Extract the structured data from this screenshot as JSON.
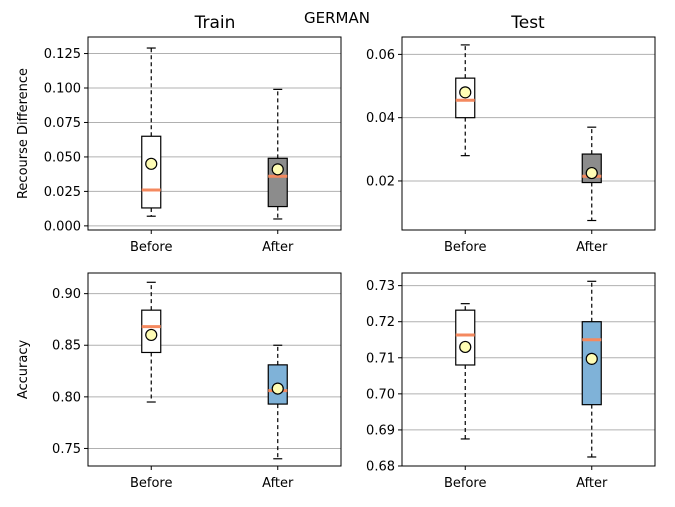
{
  "figure": {
    "suptitle": "GERMAN"
  },
  "chart_data": [
    {
      "type": "box",
      "title": "Train",
      "xlabel": "",
      "ylabel": "Recourse Difference",
      "categories": [
        "Before",
        "After"
      ],
      "ylim": [
        -0.003,
        0.137
      ],
      "yticks": [
        0.0,
        0.025,
        0.05,
        0.075,
        0.1,
        0.125
      ],
      "ytick_labels": [
        "0.000",
        "0.025",
        "0.050",
        "0.075",
        "0.100",
        "0.125"
      ],
      "grid": "y",
      "boxes": [
        {
          "category": "Before",
          "whisker_low": 0.007,
          "q1": 0.013,
          "median": 0.026,
          "q3": 0.065,
          "whisker_high": 0.129,
          "mean": 0.045,
          "fill": "#ffffff"
        },
        {
          "category": "After",
          "whisker_low": 0.005,
          "q1": 0.014,
          "median": 0.036,
          "q3": 0.049,
          "whisker_high": 0.099,
          "mean": 0.041,
          "fill": "#8c8c8c"
        }
      ]
    },
    {
      "type": "box",
      "title": "Test",
      "xlabel": "",
      "ylabel": "",
      "categories": [
        "Before",
        "After"
      ],
      "ylim": [
        0.0045,
        0.0655
      ],
      "yticks": [
        0.02,
        0.04,
        0.06
      ],
      "ytick_labels": [
        "0.02",
        "0.04",
        "0.06"
      ],
      "grid": "y",
      "boxes": [
        {
          "category": "Before",
          "whisker_low": 0.028,
          "q1": 0.04,
          "median": 0.0455,
          "q3": 0.0525,
          "whisker_high": 0.063,
          "mean": 0.048,
          "fill": "#ffffff"
        },
        {
          "category": "After",
          "whisker_low": 0.0075,
          "q1": 0.0195,
          "median": 0.0215,
          "q3": 0.0285,
          "whisker_high": 0.037,
          "mean": 0.0225,
          "fill": "#8c8c8c"
        }
      ]
    },
    {
      "type": "box",
      "title": "",
      "xlabel": "",
      "ylabel": "Accuracy",
      "categories": [
        "Before",
        "After"
      ],
      "ylim": [
        0.733,
        0.92
      ],
      "yticks": [
        0.75,
        0.8,
        0.85,
        0.9
      ],
      "ytick_labels": [
        "0.75",
        "0.80",
        "0.85",
        "0.90"
      ],
      "grid": "y",
      "boxes": [
        {
          "category": "Before",
          "whisker_low": 0.795,
          "q1": 0.843,
          "median": 0.868,
          "q3": 0.884,
          "whisker_high": 0.911,
          "mean": 0.86,
          "fill": "#ffffff"
        },
        {
          "category": "After",
          "whisker_low": 0.74,
          "q1": 0.793,
          "median": 0.806,
          "q3": 0.831,
          "whisker_high": 0.85,
          "mean": 0.808,
          "fill": "#7fb2d8"
        }
      ]
    },
    {
      "type": "box",
      "title": "",
      "xlabel": "",
      "ylabel": "",
      "categories": [
        "Before",
        "After"
      ],
      "ylim": [
        0.68,
        0.7335
      ],
      "yticks": [
        0.68,
        0.69,
        0.7,
        0.71,
        0.72,
        0.73
      ],
      "ytick_labels": [
        "0.68",
        "0.69",
        "0.70",
        "0.71",
        "0.72",
        "0.73"
      ],
      "grid": "y",
      "boxes": [
        {
          "category": "Before",
          "whisker_low": 0.6875,
          "q1": 0.708,
          "median": 0.7163,
          "q3": 0.7232,
          "whisker_high": 0.725,
          "mean": 0.713,
          "fill": "#ffffff"
        },
        {
          "category": "After",
          "whisker_low": 0.6825,
          "q1": 0.697,
          "median": 0.715,
          "q3": 0.72,
          "whisker_high": 0.7312,
          "mean": 0.7097,
          "fill": "#7fb2d8"
        }
      ]
    }
  ],
  "style": {
    "median_color": "#f4895f",
    "mean_fill": "#fffdb5",
    "grid_color": "#b0b0b0"
  }
}
